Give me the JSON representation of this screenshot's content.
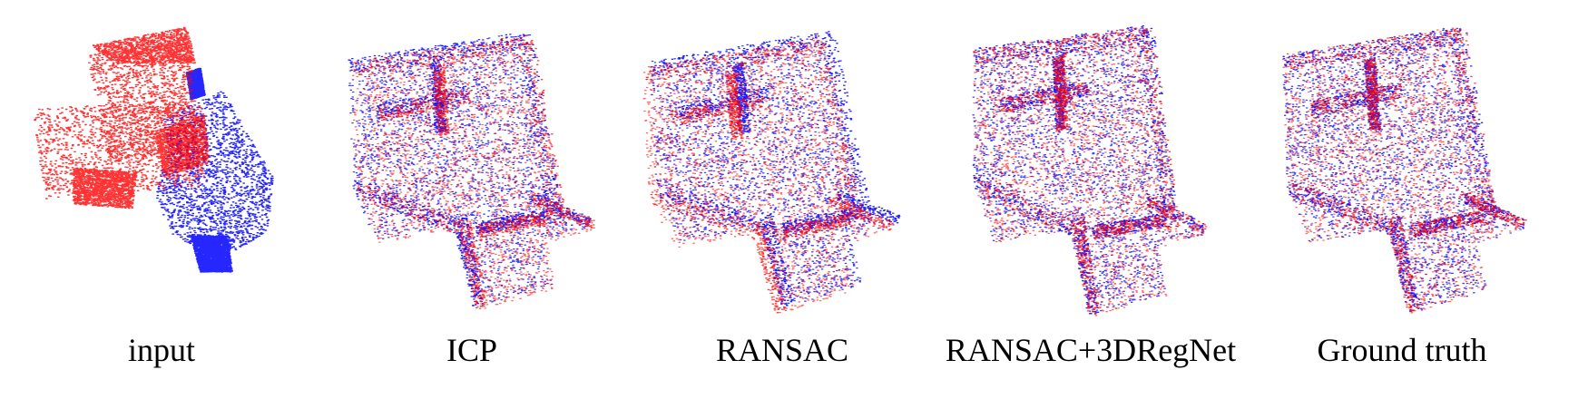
{
  "figure": {
    "colors": {
      "source": "#ff0000",
      "target": "#0000ff"
    },
    "panels": [
      {
        "id": "input",
        "caption": "input"
      },
      {
        "id": "icp",
        "caption": "ICP"
      },
      {
        "id": "ransac",
        "caption": "RANSAC"
      },
      {
        "id": "ransac-3dregnet",
        "caption": "RANSAC+3DRegNet"
      },
      {
        "id": "ground-truth",
        "caption": "Ground truth"
      }
    ]
  }
}
